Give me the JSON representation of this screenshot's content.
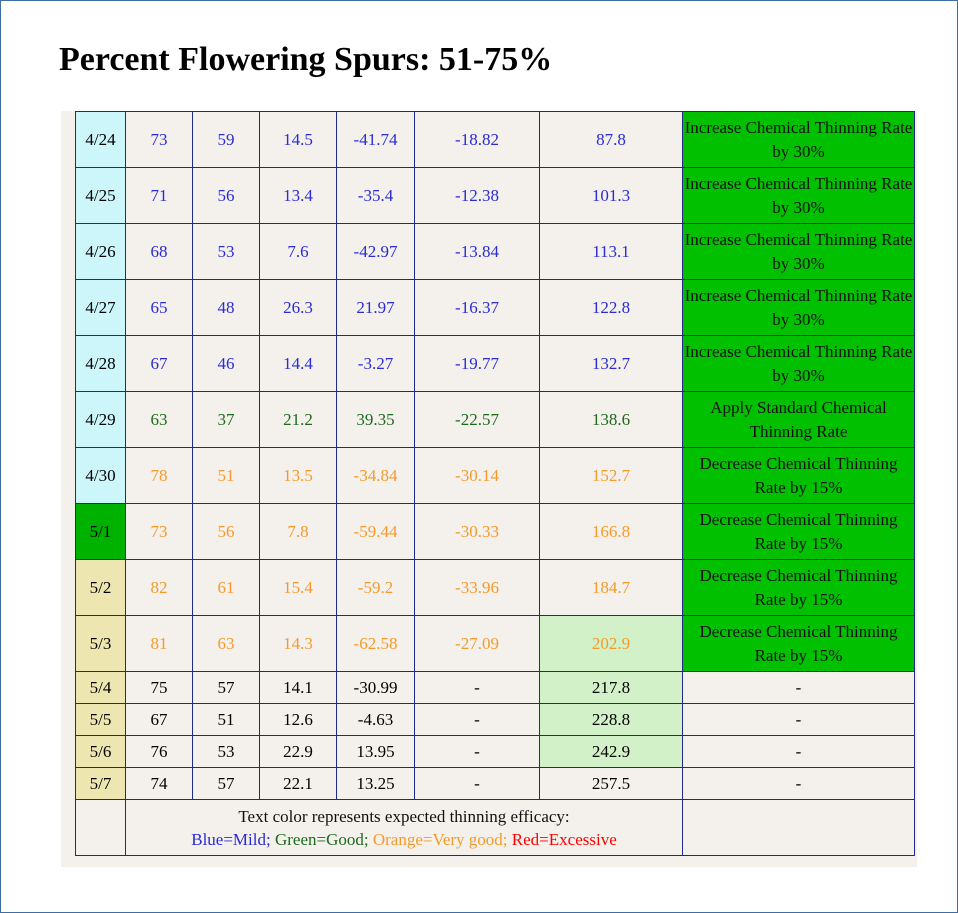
{
  "title": "Percent Flowering Spurs: 51-75%",
  "colors": {
    "blue": "#2a2ad6",
    "green": "#1d6a1d",
    "orange": "#f59a2a",
    "red": "#ff0000",
    "date_cyan": "#ccf6fa",
    "date_green": "#00b200",
    "date_tan": "#ede6b1",
    "recommendation_green": "#00c000",
    "highlight_green": "#d3f1c8",
    "border": "#1f2a86"
  },
  "rows": [
    {
      "date": "4/24",
      "date_bg": "cyan",
      "color": "blue",
      "c1": "73",
      "c2": "59",
      "c3": "14.5",
      "c4": "-41.74",
      "c5": "-18.82",
      "c6": "87.8",
      "c6_highlight": false,
      "rec": "Increase Chemical Thinning Rate by 30%",
      "rec_green": true,
      "size": "big"
    },
    {
      "date": "4/25",
      "date_bg": "cyan",
      "color": "blue",
      "c1": "71",
      "c2": "56",
      "c3": "13.4",
      "c4": "-35.4",
      "c5": "-12.38",
      "c6": "101.3",
      "c6_highlight": false,
      "rec": "Increase Chemical Thinning Rate by 30%",
      "rec_green": true,
      "size": "big"
    },
    {
      "date": "4/26",
      "date_bg": "cyan",
      "color": "blue",
      "c1": "68",
      "c2": "53",
      "c3": "7.6",
      "c4": "-42.97",
      "c5": "-13.84",
      "c6": "113.1",
      "c6_highlight": false,
      "rec": "Increase Chemical Thinning Rate by 30%",
      "rec_green": true,
      "size": "big"
    },
    {
      "date": "4/27",
      "date_bg": "cyan",
      "color": "blue",
      "c1": "65",
      "c2": "48",
      "c3": "26.3",
      "c4": "21.97",
      "c5": "-16.37",
      "c6": "122.8",
      "c6_highlight": false,
      "rec": "Increase Chemical Thinning Rate by 30%",
      "rec_green": true,
      "size": "big"
    },
    {
      "date": "4/28",
      "date_bg": "cyan",
      "color": "blue",
      "c1": "67",
      "c2": "46",
      "c3": "14.4",
      "c4": "-3.27",
      "c5": "-19.77",
      "c6": "132.7",
      "c6_highlight": false,
      "rec": "Increase Chemical Thinning Rate by 30%",
      "rec_green": true,
      "size": "big"
    },
    {
      "date": "4/29",
      "date_bg": "cyan",
      "color": "green",
      "c1": "63",
      "c2": "37",
      "c3": "21.2",
      "c4": "39.35",
      "c5": "-22.57",
      "c6": "138.6",
      "c6_highlight": false,
      "rec": "Apply Standard Chemical Thinning Rate",
      "rec_green": true,
      "size": "big"
    },
    {
      "date": "4/30",
      "date_bg": "cyan",
      "color": "orange",
      "c1": "78",
      "c2": "51",
      "c3": "13.5",
      "c4": "-34.84",
      "c5": "-30.14",
      "c6": "152.7",
      "c6_highlight": false,
      "rec": "Decrease Chemical Thinning Rate by 15%",
      "rec_green": true,
      "size": "big"
    },
    {
      "date": "5/1",
      "date_bg": "green",
      "color": "orange",
      "c1": "73",
      "c2": "56",
      "c3": "7.8",
      "c4": "-59.44",
      "c5": "-30.33",
      "c6": "166.8",
      "c6_highlight": false,
      "rec": "Decrease Chemical Thinning Rate by 15%",
      "rec_green": true,
      "size": "big"
    },
    {
      "date": "5/2",
      "date_bg": "tan",
      "color": "orange",
      "c1": "82",
      "c2": "61",
      "c3": "15.4",
      "c4": "-59.2",
      "c5": "-33.96",
      "c6": "184.7",
      "c6_highlight": false,
      "rec": "Decrease Chemical Thinning Rate by 15%",
      "rec_green": true,
      "size": "big"
    },
    {
      "date": "5/3",
      "date_bg": "tan",
      "color": "orange",
      "c1": "81",
      "c2": "63",
      "c3": "14.3",
      "c4": "-62.58",
      "c5": "-27.09",
      "c6": "202.9",
      "c6_highlight": true,
      "rec": "Decrease Chemical Thinning Rate by 15%",
      "rec_green": true,
      "size": "big"
    },
    {
      "date": "5/4",
      "date_bg": "tan",
      "color": "black",
      "c1": "75",
      "c2": "57",
      "c3": "14.1",
      "c4": "-30.99",
      "c5": "-",
      "c6": "217.8",
      "c6_highlight": true,
      "rec": "-",
      "rec_green": false,
      "size": "small"
    },
    {
      "date": "5/5",
      "date_bg": "tan",
      "color": "black",
      "c1": "67",
      "c2": "51",
      "c3": "12.6",
      "c4": "-4.63",
      "c5": "-",
      "c6": "228.8",
      "c6_highlight": true,
      "rec": "-",
      "rec_green": false,
      "size": "small"
    },
    {
      "date": "5/6",
      "date_bg": "tan",
      "color": "black",
      "c1": "76",
      "c2": "53",
      "c3": "22.9",
      "c4": "13.95",
      "c5": "-",
      "c6": "242.9",
      "c6_highlight": true,
      "rec": "-",
      "rec_green": false,
      "size": "small"
    },
    {
      "date": "5/7",
      "date_bg": "tan",
      "color": "black",
      "c1": "74",
      "c2": "57",
      "c3": "22.1",
      "c4": "13.25",
      "c5": "-",
      "c6": "257.5",
      "c6_highlight": false,
      "rec": "-",
      "rec_green": false,
      "size": "small"
    }
  ],
  "legend": {
    "heading": "Text color represents expected thinning efficacy:",
    "blue": "Blue=Mild;",
    "green": "Green=Good;",
    "orange": "Orange=Very good;",
    "red": "Red=Excessive"
  }
}
